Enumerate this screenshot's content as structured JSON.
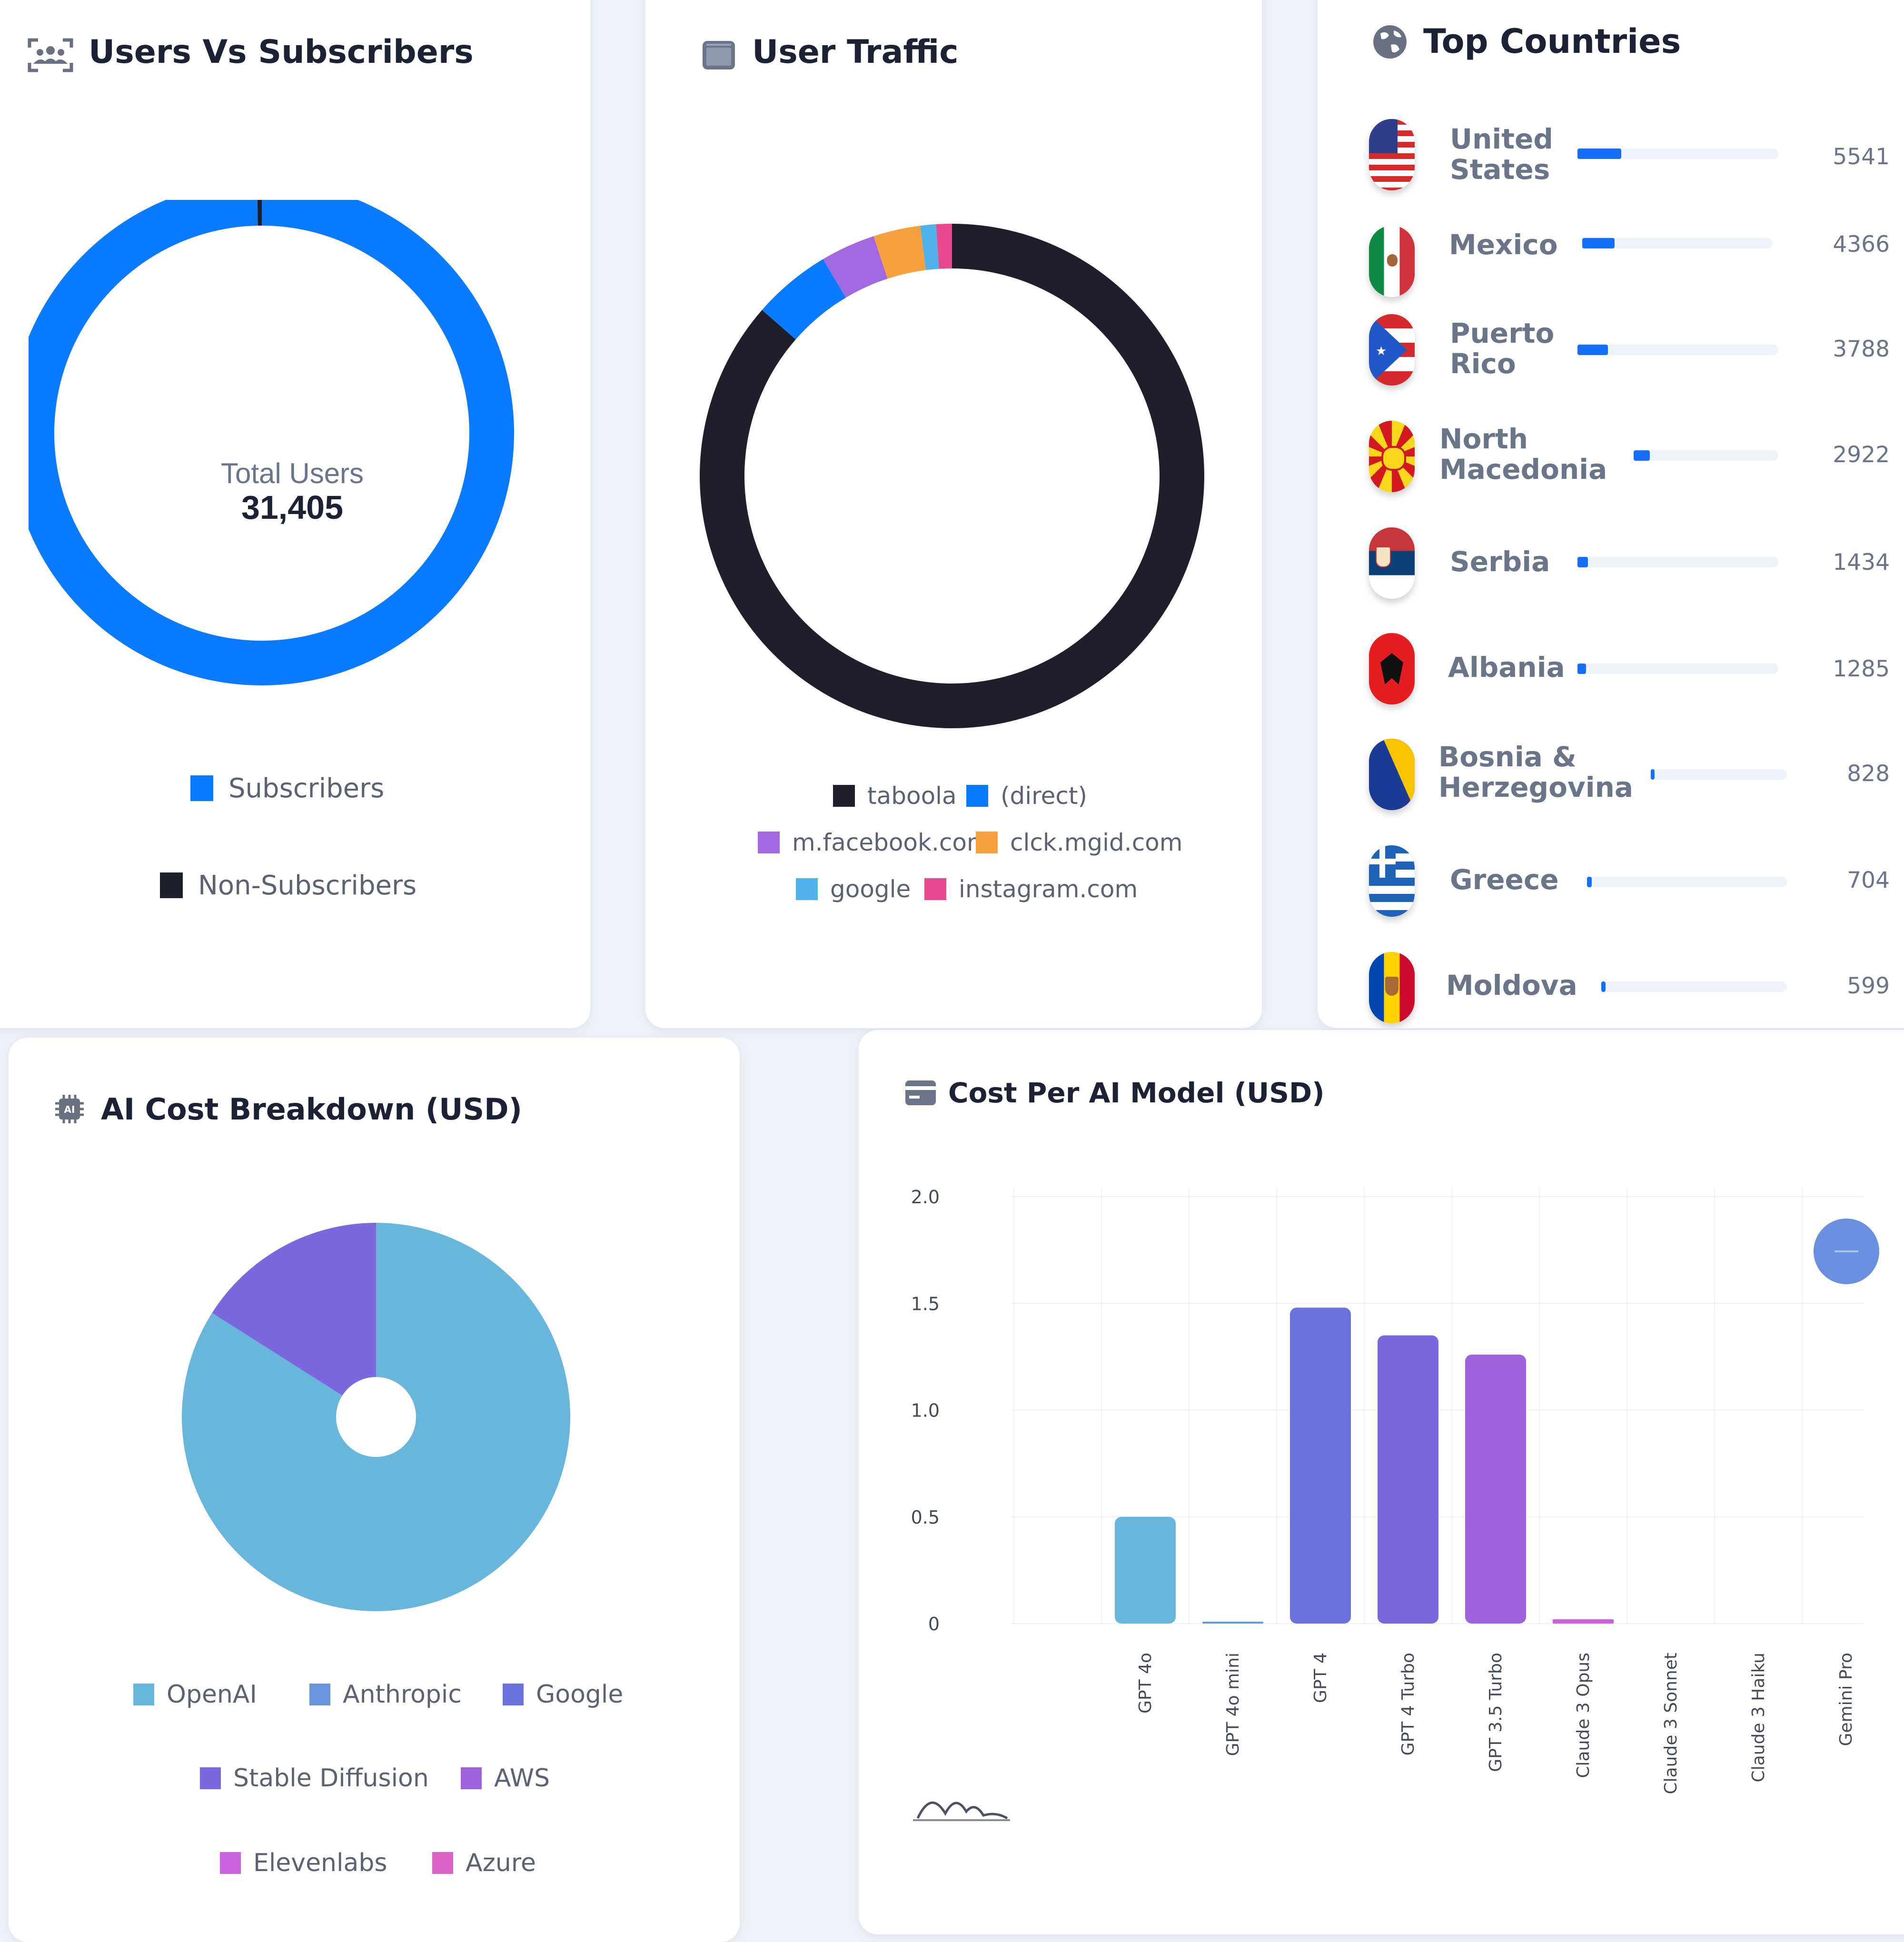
{
  "users_card": {
    "title": "Users Vs Subscribers",
    "center_label": "Total Users",
    "center_value": "31,405",
    "legend": [
      {
        "label": "Subscribers",
        "color": "#0a7bff"
      },
      {
        "label": "Non-Subscribers",
        "color": "#1c1f2c"
      }
    ]
  },
  "traffic_card": {
    "title": "User Traffic",
    "legend": [
      {
        "label": "taboola",
        "color": "#1f1f2b"
      },
      {
        "label": "(direct)",
        "color": "#0a7bff"
      },
      {
        "label": "m.facebook.com",
        "color": "#a168e0"
      },
      {
        "label": "clck.mgid.com",
        "color": "#f6a13d"
      },
      {
        "label": "google",
        "color": "#4fb2ea"
      },
      {
        "label": "instagram.com",
        "color": "#e8488e"
      }
    ]
  },
  "countries_card": {
    "title": "Top Countries",
    "countries": [
      {
        "name": "United States",
        "value": "5541",
        "flag": "us-flag-icon"
      },
      {
        "name": "Mexico",
        "value": "4366",
        "flag": "mexico-flag-icon"
      },
      {
        "name": "Puerto Rico",
        "value": "3788",
        "flag": "puerto-rico-flag-icon"
      },
      {
        "name": "North Macedonia",
        "value": "2922",
        "flag": "north-macedonia-flag-icon"
      },
      {
        "name": "Serbia",
        "value": "1434",
        "flag": "serbia-flag-icon"
      },
      {
        "name": "Albania",
        "value": "1285",
        "flag": "albania-flag-icon"
      },
      {
        "name": "Bosnia & Herzegovina",
        "value": "828",
        "flag": "bosnia-flag-icon"
      },
      {
        "name": "Greece",
        "value": "704",
        "flag": "greece-flag-icon"
      },
      {
        "name": "Moldova",
        "value": "599",
        "flag": "moldova-flag-icon"
      }
    ]
  },
  "ai_cost_card": {
    "title": "AI Cost Breakdown (USD)",
    "legend": [
      {
        "label": "OpenAI",
        "color": "#68b6dc"
      },
      {
        "label": "Anthropic",
        "color": "#6a96e0"
      },
      {
        "label": "Google",
        "color": "#6a72de"
      },
      {
        "label": "Stable Diffusion",
        "color": "#7b67de"
      },
      {
        "label": "AWS",
        "color": "#a062dc"
      },
      {
        "label": "Elevenlabs",
        "color": "#c962dc"
      },
      {
        "label": "Azure",
        "color": "#dc62c6"
      }
    ]
  },
  "model_cost_card": {
    "title": "Cost Per AI Model (USD)"
  },
  "chart_data": [
    {
      "type": "pie",
      "title": "Users Vs Subscribers",
      "categories": [
        "Subscribers",
        "Non-Subscribers"
      ],
      "values": [
        99.7,
        0.3
      ],
      "colors": [
        "#0a7bff",
        "#1c1f2c"
      ]
    },
    {
      "type": "pie",
      "title": "User Traffic",
      "categories": [
        "taboola",
        "(direct)",
        "m.facebook.com",
        "clck.mgid.com",
        "google",
        "instagram.com"
      ],
      "values": [
        86,
        5,
        3.5,
        3,
        1,
        1
      ],
      "colors": [
        "#1f1f2b",
        "#0a7bff",
        "#a168e0",
        "#f6a13d",
        "#4fb2ea",
        "#e8488e"
      ]
    },
    {
      "type": "pie",
      "title": "AI Cost Breakdown (USD)",
      "categories": [
        "OpenAI",
        "Anthropic",
        "Google",
        "Stable Diffusion",
        "AWS",
        "Elevenlabs",
        "Azure"
      ],
      "values": [
        84,
        0,
        0,
        16,
        0,
        0,
        0
      ],
      "colors": [
        "#68b6dc",
        "#6a96e0",
        "#6a72de",
        "#7b67de",
        "#a062dc",
        "#c962dc",
        "#dc62c6"
      ]
    },
    {
      "type": "bar",
      "title": "Cost Per AI Model (USD)",
      "categories": [
        "GPT 4o",
        "GPT 4o mini",
        "GPT 4",
        "GPT 4 Turbo",
        "GPT 3.5 Turbo",
        "Claude 3 Opus",
        "Claude 3 Sonnet",
        "Claude 3 Haiku",
        "Gemini Pro"
      ],
      "values": [
        0.5,
        0.005,
        1.48,
        1.35,
        1.26,
        0.02,
        0,
        0,
        0
      ],
      "colors": [
        "#68b6dc",
        "#6a96e0",
        "#6a72de",
        "#7b67de",
        "#a062dc",
        "#c962dc",
        "#dc62c6",
        "#dc62c6",
        "#dc62c6"
      ],
      "y_ticks": [
        "2.0",
        "1.5",
        "1.0",
        "0.5",
        "0"
      ],
      "ylim": [
        0,
        2.0
      ],
      "xlabel": "",
      "ylabel": ""
    }
  ]
}
